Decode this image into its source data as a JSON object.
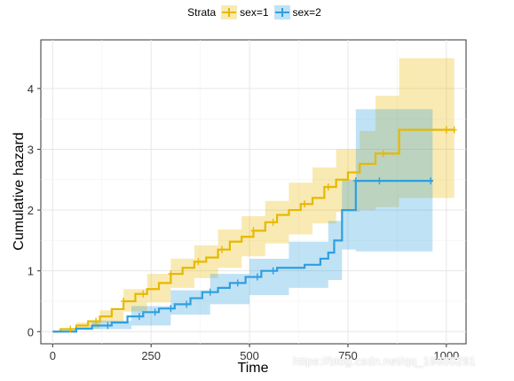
{
  "legend": {
    "title": "Strata",
    "items": [
      {
        "label": "sex=1",
        "color": "#E7B800"
      },
      {
        "label": "sex=2",
        "color": "#2E9FDF"
      }
    ]
  },
  "watermark": "https://blog.csdn.net/qq_19600291",
  "chart_data": {
    "type": "line",
    "title": "",
    "xlabel": "Time",
    "ylabel": "Cumulative hazard",
    "xlim": [
      -30,
      1050
    ],
    "ylim": [
      -0.2,
      4.8
    ],
    "xticks": [
      0,
      250,
      500,
      750,
      1000
    ],
    "yticks": [
      0,
      1,
      2,
      3,
      4
    ],
    "grid": true,
    "legend_position": "top",
    "series": [
      {
        "name": "sex=1",
        "color": "#E7B800",
        "step": [
          [
            0,
            0
          ],
          [
            20,
            0.04
          ],
          [
            60,
            0.1
          ],
          [
            90,
            0.17
          ],
          [
            120,
            0.25
          ],
          [
            150,
            0.37
          ],
          [
            180,
            0.5
          ],
          [
            210,
            0.62
          ],
          [
            240,
            0.7
          ],
          [
            270,
            0.8
          ],
          [
            300,
            0.95
          ],
          [
            330,
            1.05
          ],
          [
            360,
            1.15
          ],
          [
            390,
            1.22
          ],
          [
            420,
            1.35
          ],
          [
            450,
            1.48
          ],
          [
            480,
            1.56
          ],
          [
            510,
            1.66
          ],
          [
            540,
            1.8
          ],
          [
            570,
            1.92
          ],
          [
            600,
            2.0
          ],
          [
            630,
            2.1
          ],
          [
            660,
            2.2
          ],
          [
            690,
            2.38
          ],
          [
            720,
            2.5
          ],
          [
            750,
            2.62
          ],
          [
            780,
            2.76
          ],
          [
            820,
            2.93
          ],
          [
            880,
            3.32
          ],
          [
            1020,
            3.32
          ]
        ],
        "lower": [
          [
            0,
            0
          ],
          [
            60,
            0.05
          ],
          [
            120,
            0.15
          ],
          [
            180,
            0.33
          ],
          [
            240,
            0.48
          ],
          [
            300,
            0.72
          ],
          [
            360,
            0.88
          ],
          [
            420,
            1.05
          ],
          [
            480,
            1.24
          ],
          [
            540,
            1.45
          ],
          [
            600,
            1.6
          ],
          [
            660,
            1.78
          ],
          [
            720,
            1.97
          ],
          [
            780,
            2.0
          ],
          [
            820,
            2.05
          ],
          [
            880,
            2.2
          ],
          [
            1020,
            2.15
          ]
        ],
        "upper": [
          [
            0,
            0
          ],
          [
            60,
            0.15
          ],
          [
            120,
            0.35
          ],
          [
            180,
            0.7
          ],
          [
            240,
            0.95
          ],
          [
            300,
            1.2
          ],
          [
            360,
            1.42
          ],
          [
            420,
            1.68
          ],
          [
            480,
            1.9
          ],
          [
            540,
            2.15
          ],
          [
            600,
            2.45
          ],
          [
            660,
            2.7
          ],
          [
            720,
            3.0
          ],
          [
            780,
            3.3
          ],
          [
            820,
            3.88
          ],
          [
            880,
            4.5
          ],
          [
            1020,
            4.5
          ]
        ],
        "censor_x": [
          45,
          110,
          180,
          230,
          300,
          370,
          430,
          510,
          560,
          640,
          700,
          840,
          1000,
          1020
        ]
      },
      {
        "name": "sex=2",
        "color": "#2E9FDF",
        "step": [
          [
            0,
            0
          ],
          [
            60,
            0.05
          ],
          [
            100,
            0.1
          ],
          [
            150,
            0.15
          ],
          [
            190,
            0.25
          ],
          [
            230,
            0.32
          ],
          [
            270,
            0.38
          ],
          [
            310,
            0.45
          ],
          [
            350,
            0.55
          ],
          [
            380,
            0.65
          ],
          [
            420,
            0.72
          ],
          [
            450,
            0.8
          ],
          [
            490,
            0.9
          ],
          [
            530,
            1.0
          ],
          [
            570,
            1.05
          ],
          [
            610,
            1.05
          ],
          [
            640,
            1.1
          ],
          [
            680,
            1.2
          ],
          [
            700,
            1.3
          ],
          [
            715,
            1.5
          ],
          [
            735,
            2.0
          ],
          [
            770,
            2.48
          ],
          [
            965,
            2.48
          ]
        ],
        "lower": [
          [
            0,
            0
          ],
          [
            100,
            0.04
          ],
          [
            200,
            0.1
          ],
          [
            300,
            0.28
          ],
          [
            400,
            0.45
          ],
          [
            500,
            0.6
          ],
          [
            600,
            0.72
          ],
          [
            700,
            0.85
          ],
          [
            735,
            1.35
          ],
          [
            770,
            1.32
          ],
          [
            965,
            1.32
          ]
        ],
        "upper": [
          [
            0,
            0
          ],
          [
            100,
            0.18
          ],
          [
            200,
            0.42
          ],
          [
            300,
            0.68
          ],
          [
            400,
            0.95
          ],
          [
            500,
            1.2
          ],
          [
            600,
            1.48
          ],
          [
            700,
            1.82
          ],
          [
            735,
            2.5
          ],
          [
            770,
            3.66
          ],
          [
            965,
            3.66
          ]
        ],
        "censor_x": [
          140,
          220,
          260,
          300,
          340,
          400,
          470,
          520,
          560,
          770,
          830,
          960
        ]
      }
    ]
  }
}
